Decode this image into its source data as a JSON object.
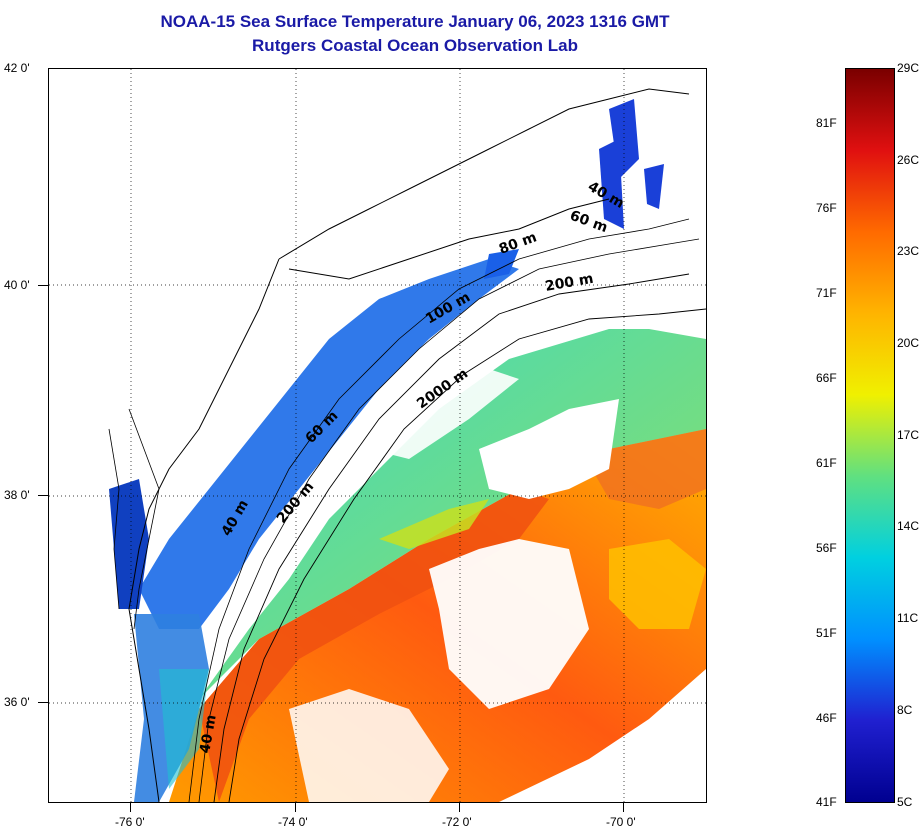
{
  "title": {
    "line1": "NOAA-15 Sea Surface Temperature January 06, 2023 1316 GMT",
    "line2": "Rutgers Coastal Ocean Observation Lab"
  },
  "map": {
    "lat_labels": [
      "42 0'",
      "40 0'",
      "38 0'",
      "36 0'"
    ],
    "lon_labels": [
      "-76 0'",
      "-74 0'",
      "-72 0'",
      "-70 0'"
    ],
    "contour_labels": [
      "40 m",
      "60 m",
      "80 m",
      "200 m",
      "100 m",
      "2000 m",
      "60 m",
      "200 m",
      "40 m",
      "40 m"
    ],
    "gridlines": true
  },
  "colorbar": {
    "celsius_labels": [
      "29C",
      "26C",
      "23C",
      "20C",
      "17C",
      "14C",
      "11C",
      "8C",
      "5C"
    ],
    "fahrenheit_labels": [
      "81F",
      "76F",
      "71F",
      "66F",
      "61F",
      "56F",
      "51F",
      "46F",
      "41F"
    ],
    "colors": [
      "#7a0000",
      "#e01010",
      "#ff6a00",
      "#ffb400",
      "#f0f000",
      "#60e080",
      "#00d0e0",
      "#0090ff",
      "#2020d0",
      "#000090"
    ]
  }
}
